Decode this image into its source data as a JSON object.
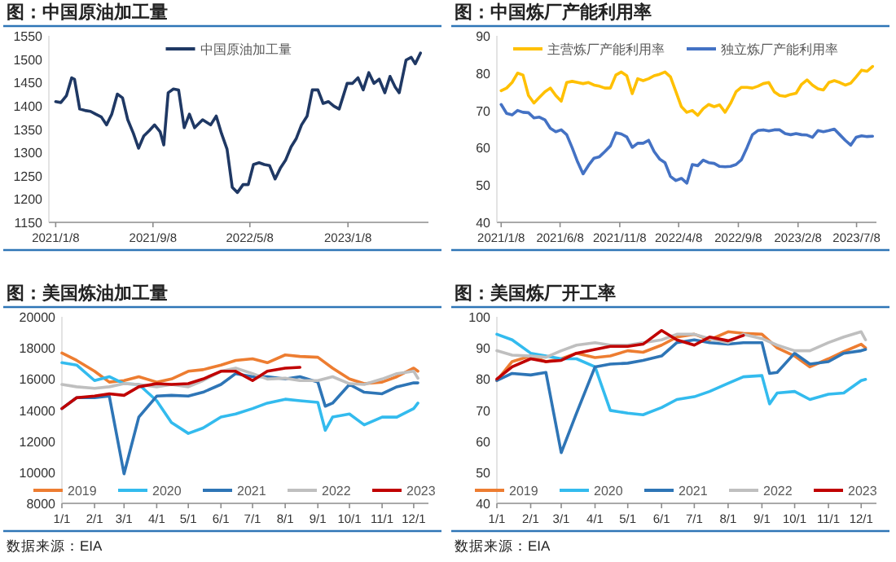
{
  "chart_data": [
    {
      "type": "line",
      "title": "图：中国原油加工量",
      "legend": "top",
      "xlim": [
        "2020-12-22",
        "2023-07-28"
      ],
      "xticks": [
        {
          "value": "2021-01-08",
          "label": "2021/1/8"
        },
        {
          "value": "2021-09-08",
          "label": "2021/9/8"
        },
        {
          "value": "2022-05-08",
          "label": "2022/5/8"
        },
        {
          "value": "2023-01-08",
          "label": "2023/1/8"
        }
      ],
      "ylim": [
        1150,
        1550
      ],
      "yticks": [
        1150,
        1200,
        1250,
        1300,
        1350,
        1400,
        1450,
        1500,
        1550
      ],
      "series": [
        {
          "name": "中国原油加工量",
          "color": "#1f3864",
          "x": [
            "2021-01-08",
            "2021-01-21",
            "2021-02-04",
            "2021-02-17",
            "2021-02-24",
            "2021-03-09",
            "2021-03-22",
            "2021-04-05",
            "2021-04-18",
            "2021-05-02",
            "2021-05-15",
            "2021-05-28",
            "2021-06-11",
            "2021-06-24",
            "2021-07-07",
            "2021-07-21",
            "2021-08-03",
            "2021-08-16",
            "2021-08-30",
            "2021-09-12",
            "2021-09-26",
            "2021-10-05",
            "2021-10-16",
            "2021-10-29",
            "2021-11-11",
            "2021-11-25",
            "2021-12-08",
            "2021-12-21",
            "2022-01-10",
            "2022-01-30",
            "2022-02-13",
            "2022-02-26",
            "2022-03-12",
            "2022-03-25",
            "2022-04-07",
            "2022-04-21",
            "2022-05-04",
            "2022-05-17",
            "2022-05-31",
            "2022-06-13",
            "2022-06-26",
            "2022-07-10",
            "2022-07-23",
            "2022-08-05",
            "2022-08-19",
            "2022-09-01",
            "2022-09-14",
            "2022-09-28",
            "2022-10-11",
            "2022-10-25",
            "2022-11-07",
            "2022-11-20",
            "2022-12-04",
            "2022-12-17",
            "2023-01-06",
            "2023-01-19",
            "2023-02-02",
            "2023-02-15",
            "2023-03-01",
            "2023-03-14",
            "2023-03-27",
            "2023-04-10",
            "2023-04-23",
            "2023-05-06",
            "2023-05-16",
            "2023-06-02",
            "2023-06-15",
            "2023-06-25",
            "2023-07-08"
          ],
          "values": [
            1409,
            1407,
            1422,
            1460,
            1457,
            1393,
            1390,
            1388,
            1382,
            1376,
            1359,
            1382,
            1425,
            1417,
            1370,
            1341,
            1309,
            1335,
            1347,
            1359,
            1344,
            1316,
            1428,
            1436,
            1434,
            1353,
            1382,
            1353,
            1370,
            1359,
            1378,
            1341,
            1307,
            1225,
            1214,
            1231,
            1231,
            1274,
            1278,
            1274,
            1272,
            1243,
            1266,
            1283,
            1312,
            1330,
            1359,
            1378,
            1434,
            1434,
            1405,
            1409,
            1399,
            1393,
            1448,
            1448,
            1460,
            1434,
            1471,
            1448,
            1457,
            1428,
            1463,
            1440,
            1428,
            1498,
            1504,
            1490,
            1513
          ]
        }
      ]
    },
    {
      "type": "line",
      "title": "图：中国炼厂产能利用率",
      "legend": "top",
      "xlim": [
        "2020-12-28",
        "2023-08-28"
      ],
      "xticks": [
        {
          "value": "2021-01-08",
          "label": "2021/1/8"
        },
        {
          "value": "2021-06-08",
          "label": "2021/6/8"
        },
        {
          "value": "2021-11-08",
          "label": "2021/11/8"
        },
        {
          "value": "2022-04-08",
          "label": "2022/4/8"
        },
        {
          "value": "2022-09-08",
          "label": "2022/9/8"
        },
        {
          "value": "2023-02-08",
          "label": "2023/2/8"
        },
        {
          "value": "2023-07-08",
          "label": "2023/7/8"
        }
      ],
      "ylim": [
        40,
        90
      ],
      "yticks": [
        40,
        50,
        60,
        70,
        80,
        90
      ],
      "series": [
        {
          "name": "主营炼厂产能利用率",
          "color": "#ffc000",
          "x": [
            "2021-01-08",
            "2021-01-22",
            "2021-02-05",
            "2021-02-19",
            "2021-03-05",
            "2021-03-19",
            "2021-04-02",
            "2021-04-16",
            "2021-04-30",
            "2021-05-14",
            "2021-05-28",
            "2021-06-11",
            "2021-06-25",
            "2021-07-09",
            "2021-07-23",
            "2021-08-06",
            "2021-08-20",
            "2021-09-03",
            "2021-09-17",
            "2021-10-01",
            "2021-10-15",
            "2021-10-29",
            "2021-11-12",
            "2021-11-26",
            "2021-12-10",
            "2021-12-24",
            "2022-01-07",
            "2022-01-21",
            "2022-02-04",
            "2022-02-18",
            "2022-03-04",
            "2022-03-18",
            "2022-04-01",
            "2022-04-15",
            "2022-04-29",
            "2022-05-13",
            "2022-05-27",
            "2022-06-10",
            "2022-06-24",
            "2022-07-08",
            "2022-07-22",
            "2022-08-05",
            "2022-08-19",
            "2022-09-02",
            "2022-09-16",
            "2022-09-30",
            "2022-10-14",
            "2022-10-28",
            "2022-11-11",
            "2022-11-25",
            "2022-12-09",
            "2022-12-23",
            "2023-01-06",
            "2023-01-20",
            "2023-02-03",
            "2023-02-17",
            "2023-03-03",
            "2023-03-17",
            "2023-03-31",
            "2023-04-14",
            "2023-04-28",
            "2023-05-12",
            "2023-05-26",
            "2023-06-09",
            "2023-06-23",
            "2023-07-07",
            "2023-07-21",
            "2023-08-04",
            "2023-08-18"
          ],
          "values": [
            75.3,
            76.0,
            77.5,
            80.0,
            79.5,
            74.0,
            72.0,
            73.5,
            75.0,
            76.0,
            74.0,
            72.5,
            77.5,
            77.8,
            77.5,
            77.2,
            77.5,
            76.8,
            76.5,
            76.0,
            76.0,
            79.5,
            80.3,
            79.3,
            74.5,
            78.5,
            78.0,
            78.5,
            79.3,
            79.7,
            80.3,
            79.0,
            75.0,
            71.0,
            69.5,
            70.0,
            68.7,
            70.5,
            71.6,
            71.0,
            71.5,
            69.5,
            71.9,
            75.0,
            76.2,
            76.2,
            76.0,
            76.5,
            77.2,
            77.5,
            75.0,
            74.0,
            73.8,
            74.3,
            74.6,
            77.0,
            78.2,
            76.8,
            75.8,
            75.5,
            77.5,
            78.0,
            77.5,
            76.8,
            77.3,
            79.0,
            80.8,
            80.5,
            81.8
          ]
        },
        {
          "name": "独立炼厂产能利用率",
          "color": "#4472c4",
          "x": [
            "2021-01-08",
            "2021-01-22",
            "2021-02-05",
            "2021-02-19",
            "2021-03-05",
            "2021-03-19",
            "2021-04-02",
            "2021-04-16",
            "2021-04-30",
            "2021-05-14",
            "2021-05-28",
            "2021-06-11",
            "2021-06-25",
            "2021-07-09",
            "2021-07-23",
            "2021-08-06",
            "2021-08-20",
            "2021-09-03",
            "2021-09-17",
            "2021-10-01",
            "2021-10-15",
            "2021-10-29",
            "2021-11-12",
            "2021-11-26",
            "2021-12-10",
            "2021-12-24",
            "2022-01-07",
            "2022-01-21",
            "2022-02-04",
            "2022-02-18",
            "2022-03-04",
            "2022-03-18",
            "2022-04-01",
            "2022-04-15",
            "2022-04-29",
            "2022-05-13",
            "2022-05-27",
            "2022-06-10",
            "2022-06-24",
            "2022-07-08",
            "2022-07-22",
            "2022-08-05",
            "2022-08-19",
            "2022-09-02",
            "2022-09-16",
            "2022-09-30",
            "2022-10-14",
            "2022-10-28",
            "2022-11-11",
            "2022-11-25",
            "2022-12-09",
            "2022-12-23",
            "2023-01-06",
            "2023-01-20",
            "2023-02-03",
            "2023-02-17",
            "2023-03-03",
            "2023-03-17",
            "2023-03-31",
            "2023-04-14",
            "2023-04-28",
            "2023-05-12",
            "2023-05-26",
            "2023-06-09",
            "2023-06-23",
            "2023-07-07",
            "2023-07-21",
            "2023-08-04",
            "2023-08-18"
          ],
          "values": [
            71.6,
            69.2,
            68.8,
            70.0,
            69.5,
            69.4,
            68.0,
            68.2,
            67.5,
            65.2,
            64.3,
            64.8,
            63.5,
            60.0,
            56.2,
            53.0,
            55.3,
            57.2,
            57.6,
            59.0,
            60.5,
            64.0,
            63.7,
            62.9,
            60.1,
            61.2,
            61.2,
            62.0,
            59.0,
            57.0,
            56.0,
            52.3,
            51.2,
            51.8,
            50.5,
            55.5,
            55.2,
            56.7,
            56.0,
            55.8,
            55.0,
            54.9,
            55.0,
            55.5,
            56.8,
            60.0,
            63.5,
            64.6,
            64.8,
            64.5,
            64.8,
            64.8,
            63.8,
            63.5,
            63.8,
            63.5,
            63.4,
            62.8,
            64.6,
            64.3,
            64.6,
            65.0,
            63.5,
            62.0,
            60.7,
            62.8,
            63.2,
            63.0,
            63.1
          ]
        }
      ]
    },
    {
      "type": "line",
      "title": "图：美国炼油加工量",
      "legend": "bottom",
      "annotations": [
        "数据来源：EIA"
      ],
      "xlim": [
        "--01-01",
        "--12-15"
      ],
      "xticks": [
        {
          "value": "--01-01",
          "label": "1/1"
        },
        {
          "value": "--02-01",
          "label": "2/1"
        },
        {
          "value": "--03-01",
          "label": "3/1"
        },
        {
          "value": "--04-01",
          "label": "4/1"
        },
        {
          "value": "--05-01",
          "label": "5/1"
        },
        {
          "value": "--06-01",
          "label": "6/1"
        },
        {
          "value": "--07-01",
          "label": "7/1"
        },
        {
          "value": "--08-01",
          "label": "8/1"
        },
        {
          "value": "--09-01",
          "label": "9/1"
        },
        {
          "value": "--10-01",
          "label": "10/1"
        },
        {
          "value": "--11-01",
          "label": "11/1"
        },
        {
          "value": "--12-01",
          "label": "12/1"
        }
      ],
      "ylim": [
        8000,
        20000
      ],
      "yticks": [
        8000,
        10000,
        12000,
        14000,
        16000,
        18000,
        20000
      ],
      "series": [
        {
          "name": "2019",
          "color": "#ed7d31",
          "x": [
            "--01-01",
            "--01-15",
            "--02-01",
            "--02-15",
            "--03-01",
            "--03-15",
            "--04-01",
            "--04-15",
            "--05-01",
            "--05-15",
            "--06-01",
            "--06-15",
            "--07-01",
            "--07-15",
            "--08-01",
            "--08-15",
            "--09-01",
            "--09-15",
            "--10-01",
            "--10-15",
            "--11-01",
            "--11-15",
            "--12-01",
            "--12-05"
          ],
          "values": [
            17670,
            17200,
            16500,
            15800,
            15900,
            16150,
            15800,
            16000,
            16500,
            16600,
            16900,
            17200,
            17300,
            17050,
            17550,
            17450,
            17400,
            16700,
            16000,
            15700,
            15800,
            16150,
            16700,
            16500
          ]
        },
        {
          "name": "2020",
          "color": "#33bbee",
          "x": [
            "--01-01",
            "--01-15",
            "--02-01",
            "--02-15",
            "--03-01",
            "--03-15",
            "--04-01",
            "--04-15",
            "--05-01",
            "--05-15",
            "--06-01",
            "--06-15",
            "--07-01",
            "--07-15",
            "--08-01",
            "--08-15",
            "--09-01",
            "--09-08",
            "--09-15",
            "--10-01",
            "--10-15",
            "--11-01",
            "--11-15",
            "--12-01",
            "--12-05"
          ],
          "values": [
            17050,
            16900,
            15900,
            16150,
            15700,
            15650,
            14600,
            13200,
            12500,
            12850,
            13550,
            13750,
            14100,
            14450,
            14700,
            14600,
            14500,
            12700,
            13550,
            13750,
            13050,
            13550,
            13550,
            14100,
            14450
          ]
        },
        {
          "name": "2021",
          "color": "#2e75b6",
          "x": [
            "--01-01",
            "--01-15",
            "--02-01",
            "--02-15",
            "--03-01",
            "--03-15",
            "--04-01",
            "--04-15",
            "--05-01",
            "--05-15",
            "--06-01",
            "--06-15",
            "--07-01",
            "--07-15",
            "--08-01",
            "--08-15",
            "--09-01",
            "--09-08",
            "--09-15",
            "--10-01",
            "--10-15",
            "--11-01",
            "--11-15",
            "--12-01",
            "--12-05"
          ],
          "values": [
            14100,
            14800,
            14800,
            14900,
            9900,
            13550,
            14900,
            14950,
            14900,
            15150,
            15650,
            16350,
            16150,
            16150,
            16000,
            16150,
            15800,
            14250,
            14450,
            15650,
            15150,
            15050,
            15500,
            15750,
            15750
          ]
        },
        {
          "name": "2022",
          "color": "#bfbfbf",
          "x": [
            "--01-01",
            "--01-15",
            "--02-01",
            "--02-15",
            "--03-01",
            "--03-15",
            "--04-01",
            "--04-15",
            "--05-01",
            "--05-15",
            "--06-01",
            "--06-15",
            "--07-01",
            "--07-15",
            "--08-01",
            "--08-15",
            "--09-01",
            "--09-15",
            "--10-01",
            "--10-15",
            "--11-01",
            "--11-15",
            "--12-01",
            "--12-05"
          ],
          "values": [
            15650,
            15500,
            15400,
            15500,
            15700,
            15650,
            15500,
            15650,
            15500,
            15900,
            16500,
            16700,
            16350,
            16000,
            16050,
            15900,
            15900,
            16150,
            15700,
            15650,
            16000,
            16350,
            16500,
            16050
          ]
        },
        {
          "name": "2023",
          "color": "#c00000",
          "x": [
            "--01-01",
            "--01-15",
            "--02-01",
            "--02-15",
            "--03-01",
            "--03-15",
            "--04-01",
            "--04-15",
            "--05-01",
            "--05-15",
            "--06-01",
            "--06-15",
            "--07-01",
            "--07-15",
            "--08-01",
            "--08-15"
          ],
          "values": [
            14100,
            14800,
            14900,
            15050,
            14950,
            15500,
            15700,
            15650,
            15700,
            16000,
            16500,
            16500,
            15900,
            16500,
            16700,
            16750
          ]
        }
      ]
    },
    {
      "type": "line",
      "title": "图：美国炼厂开工率",
      "legend": "bottom",
      "annotations": [
        "数据来源：EIA"
      ],
      "xlim": [
        "--01-01",
        "--12-15"
      ],
      "xticks": [
        {
          "value": "--01-01",
          "label": "1/1"
        },
        {
          "value": "--02-01",
          "label": "2/1"
        },
        {
          "value": "--03-01",
          "label": "3/1"
        },
        {
          "value": "--04-01",
          "label": "4/1"
        },
        {
          "value": "--05-01",
          "label": "5/1"
        },
        {
          "value": "--06-01",
          "label": "6/1"
        },
        {
          "value": "--07-01",
          "label": "7/1"
        },
        {
          "value": "--08-01",
          "label": "8/1"
        },
        {
          "value": "--09-01",
          "label": "9/1"
        },
        {
          "value": "--10-01",
          "label": "10/1"
        },
        {
          "value": "--11-01",
          "label": "11/1"
        },
        {
          "value": "--12-01",
          "label": "12/1"
        }
      ],
      "ylim": [
        40,
        100
      ],
      "yticks": [
        40,
        50,
        60,
        70,
        80,
        90,
        100
      ],
      "series": [
        {
          "name": "2019",
          "color": "#ed7d31",
          "x": [
            "--01-01",
            "--01-15",
            "--02-01",
            "--02-15",
            "--03-01",
            "--03-15",
            "--04-01",
            "--04-15",
            "--05-01",
            "--05-15",
            "--06-01",
            "--06-15",
            "--07-01",
            "--07-15",
            "--08-01",
            "--08-15",
            "--09-01",
            "--09-15",
            "--10-01",
            "--10-15",
            "--11-01",
            "--11-15",
            "--12-01",
            "--12-05"
          ],
          "values": [
            79.5,
            85.6,
            87.4,
            85.6,
            86.5,
            88.3,
            86.9,
            87.4,
            89.1,
            88.6,
            90.9,
            93.5,
            94.4,
            92.6,
            95.2,
            94.7,
            94.4,
            90.0,
            87.4,
            83.9,
            86.5,
            88.8,
            91.2,
            90.0
          ]
        },
        {
          "name": "2020",
          "color": "#33bbee",
          "x": [
            "--01-01",
            "--01-15",
            "--02-01",
            "--02-15",
            "--03-01",
            "--03-15",
            "--04-01",
            "--04-15",
            "--05-01",
            "--05-15",
            "--06-01",
            "--06-15",
            "--07-01",
            "--07-15",
            "--08-01",
            "--08-15",
            "--09-01",
            "--09-08",
            "--09-15",
            "--10-01",
            "--10-15",
            "--11-01",
            "--11-15",
            "--12-01",
            "--12-05"
          ],
          "values": [
            94.4,
            92.6,
            88.3,
            87.4,
            86.5,
            86.5,
            83.9,
            69.9,
            69.0,
            68.5,
            70.8,
            73.4,
            74.3,
            76.0,
            78.6,
            80.7,
            81.1,
            72.0,
            75.5,
            76.0,
            73.4,
            75.1,
            75.5,
            79.5,
            79.9
          ]
        },
        {
          "name": "2021",
          "color": "#2e75b6",
          "x": [
            "--01-01",
            "--01-15",
            "--02-01",
            "--02-15",
            "--03-01",
            "--03-15",
            "--04-01",
            "--04-15",
            "--05-01",
            "--05-15",
            "--06-01",
            "--06-15",
            "--07-01",
            "--07-15",
            "--08-01",
            "--08-15",
            "--09-01",
            "--09-08",
            "--09-15",
            "--10-01",
            "--10-15",
            "--11-01",
            "--11-15",
            "--12-01",
            "--12-05"
          ],
          "values": [
            79.5,
            81.8,
            81.3,
            82.1,
            56.3,
            69.0,
            83.9,
            84.8,
            85.1,
            86.0,
            87.4,
            91.7,
            92.6,
            91.7,
            91.2,
            91.7,
            91.7,
            81.8,
            82.1,
            88.3,
            84.8,
            85.6,
            88.3,
            89.1,
            89.5
          ]
        },
        {
          "name": "2022",
          "color": "#bfbfbf",
          "x": [
            "--01-01",
            "--01-15",
            "--02-01",
            "--02-15",
            "--03-01",
            "--03-15",
            "--04-01",
            "--04-15",
            "--05-01",
            "--05-15",
            "--06-01",
            "--06-15",
            "--07-01",
            "--07-15",
            "--08-01",
            "--08-15",
            "--09-01",
            "--09-15",
            "--10-01",
            "--10-15",
            "--11-01",
            "--11-15",
            "--12-01",
            "--12-05"
          ],
          "values": [
            89.1,
            87.7,
            87.4,
            87.0,
            89.1,
            90.9,
            91.7,
            90.9,
            90.9,
            91.7,
            92.6,
            94.4,
            94.4,
            93.0,
            91.7,
            94.4,
            93.0,
            90.9,
            89.1,
            89.1,
            91.7,
            93.5,
            95.2,
            92.6
          ]
        },
        {
          "name": "2023",
          "color": "#c00000",
          "x": [
            "--01-01",
            "--01-15",
            "--02-01",
            "--02-15",
            "--03-01",
            "--03-15",
            "--04-01",
            "--04-15",
            "--05-01",
            "--05-15",
            "--06-01",
            "--06-15",
            "--07-01",
            "--07-15",
            "--08-01",
            "--08-15"
          ],
          "values": [
            80.0,
            83.9,
            86.5,
            85.6,
            86.0,
            88.3,
            89.5,
            90.5,
            90.5,
            91.2,
            95.6,
            92.6,
            90.9,
            93.5,
            92.3,
            94.0
          ]
        }
      ]
    }
  ]
}
